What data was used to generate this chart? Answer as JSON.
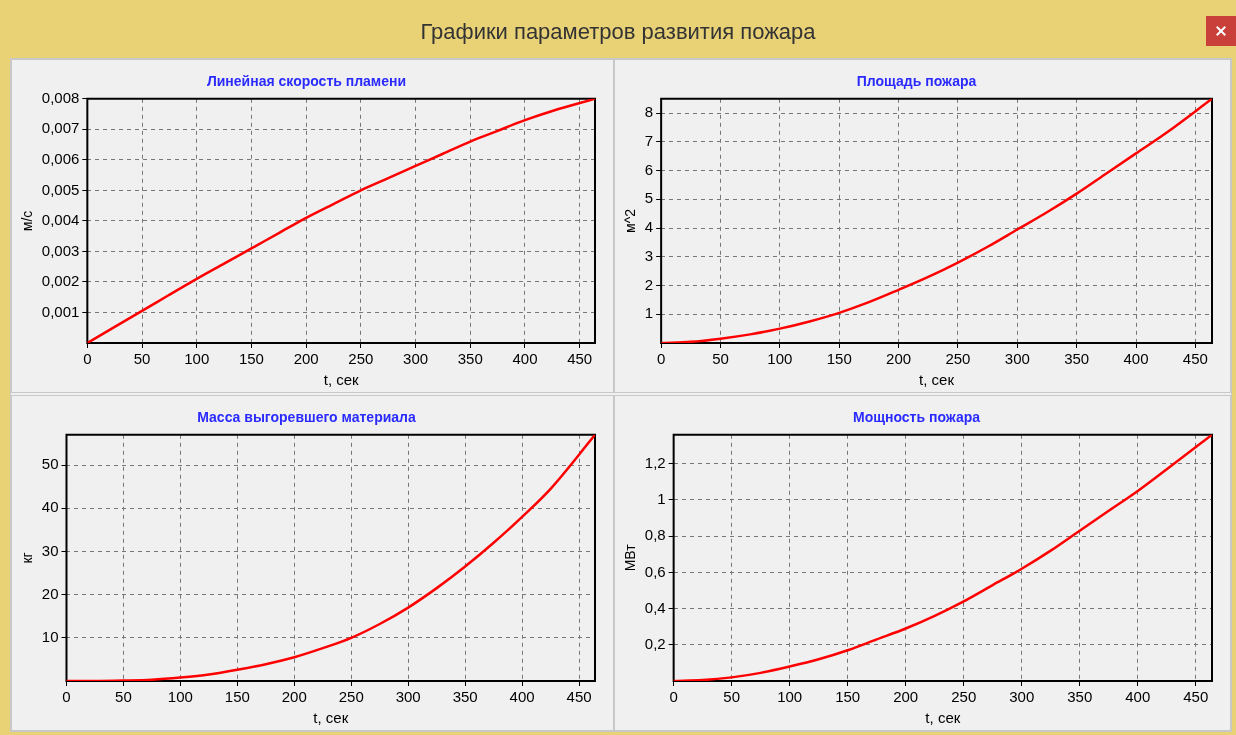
{
  "chart_data": [
    {
      "type": "other",
      "title": "Графики параметров развития пожара"
    },
    {
      "type": "line",
      "title": "Линейная скорость пламени",
      "xlabel": "t, сек",
      "ylabel": "м/с",
      "color": "#ff0000",
      "grid": true,
      "marker": "none",
      "line_style": "solid",
      "legend": false,
      "x": [
        0,
        25,
        50,
        75,
        100,
        125,
        150,
        175,
        200,
        225,
        250,
        275,
        300,
        325,
        350,
        375,
        400,
        425,
        464
      ],
      "values": [
        0,
        0.00053,
        0.00105,
        0.00158,
        0.0021,
        0.0026,
        0.0031,
        0.0036,
        0.0041,
        0.00455,
        0.005,
        0.0054,
        0.0058,
        0.0062,
        0.0066,
        0.00695,
        0.0073,
        0.0076,
        0.008
      ],
      "xlim": [
        0,
        464
      ],
      "xticks": [
        0,
        50,
        100,
        150,
        200,
        250,
        300,
        350,
        400,
        450
      ],
      "ylim": [
        0,
        0.008
      ],
      "yticks": [
        {
          "value": 0.001,
          "label": "0,001"
        },
        {
          "value": 0.002,
          "label": "0,002"
        },
        {
          "value": 0.003,
          "label": "0,003"
        },
        {
          "value": 0.004,
          "label": "0,004"
        },
        {
          "value": 0.005,
          "label": "0,005"
        },
        {
          "value": 0.006,
          "label": "0,006"
        },
        {
          "value": 0.007,
          "label": "0,007"
        },
        {
          "value": 0.008,
          "label": "0,008"
        }
      ]
    },
    {
      "type": "line",
      "title": "Площадь пожара",
      "xlabel": "t, сек",
      "ylabel": "м^2",
      "color": "#ff0000",
      "grid": true,
      "marker": "none",
      "line_style": "solid",
      "legend": false,
      "x": [
        0,
        25,
        50,
        75,
        100,
        125,
        150,
        175,
        200,
        225,
        250,
        275,
        300,
        325,
        350,
        375,
        400,
        425,
        464
      ],
      "values": [
        0,
        0.04,
        0.15,
        0.3,
        0.5,
        0.75,
        1.05,
        1.42,
        1.85,
        2.3,
        2.8,
        3.35,
        3.95,
        4.55,
        5.2,
        5.9,
        6.6,
        7.3,
        8.5
      ],
      "xlim": [
        0,
        464
      ],
      "xticks": [
        0,
        50,
        100,
        150,
        200,
        250,
        300,
        350,
        400,
        450
      ],
      "ylim": [
        0,
        8.5
      ],
      "yticks": [
        1,
        2,
        3,
        4,
        5,
        6,
        7,
        8
      ]
    },
    {
      "type": "line",
      "title": "Масса выгоревшего материала",
      "xlabel": "t, сек",
      "ylabel": "кг",
      "color": "#ff0000",
      "grid": true,
      "marker": "none",
      "line_style": "solid",
      "legend": false,
      "x": [
        0,
        25,
        50,
        75,
        100,
        125,
        150,
        175,
        200,
        225,
        250,
        275,
        300,
        325,
        350,
        375,
        400,
        425,
        464
      ],
      "values": [
        0,
        0,
        0.1,
        0.3,
        0.8,
        1.5,
        2.6,
        3.9,
        5.5,
        7.6,
        10,
        13.2,
        17,
        21.5,
        26.5,
        32,
        38,
        44.5,
        57
      ],
      "xlim": [
        0,
        464
      ],
      "xticks": [
        0,
        50,
        100,
        150,
        200,
        250,
        300,
        350,
        400,
        450
      ],
      "ylim": [
        0,
        57
      ],
      "yticks": [
        10,
        20,
        30,
        40,
        50
      ]
    },
    {
      "type": "line",
      "title": "Мощность пожара",
      "xlabel": "t, сек",
      "ylabel": "МВт",
      "color": "#ff0000",
      "grid": true,
      "marker": "none",
      "line_style": "solid",
      "legend": false,
      "x": [
        0,
        25,
        50,
        75,
        100,
        125,
        150,
        175,
        200,
        225,
        250,
        275,
        300,
        325,
        350,
        375,
        400,
        425,
        464
      ],
      "values": [
        0,
        0.005,
        0.02,
        0.045,
        0.08,
        0.12,
        0.17,
        0.23,
        0.29,
        0.36,
        0.44,
        0.53,
        0.62,
        0.72,
        0.83,
        0.94,
        1.05,
        1.17,
        1.36
      ],
      "xlim": [
        0,
        464
      ],
      "xticks": [
        0,
        50,
        100,
        150,
        200,
        250,
        300,
        350,
        400,
        450
      ],
      "ylim": [
        0,
        1.36
      ],
      "yticks": [
        {
          "value": 0.2,
          "label": "0,2"
        },
        {
          "value": 0.4,
          "label": "0,4"
        },
        {
          "value": 0.6,
          "label": "0,6"
        },
        {
          "value": 0.8,
          "label": "0,8"
        },
        {
          "value": 1,
          "label": "1"
        },
        {
          "value": 1.2,
          "label": "1,2"
        }
      ]
    }
  ]
}
